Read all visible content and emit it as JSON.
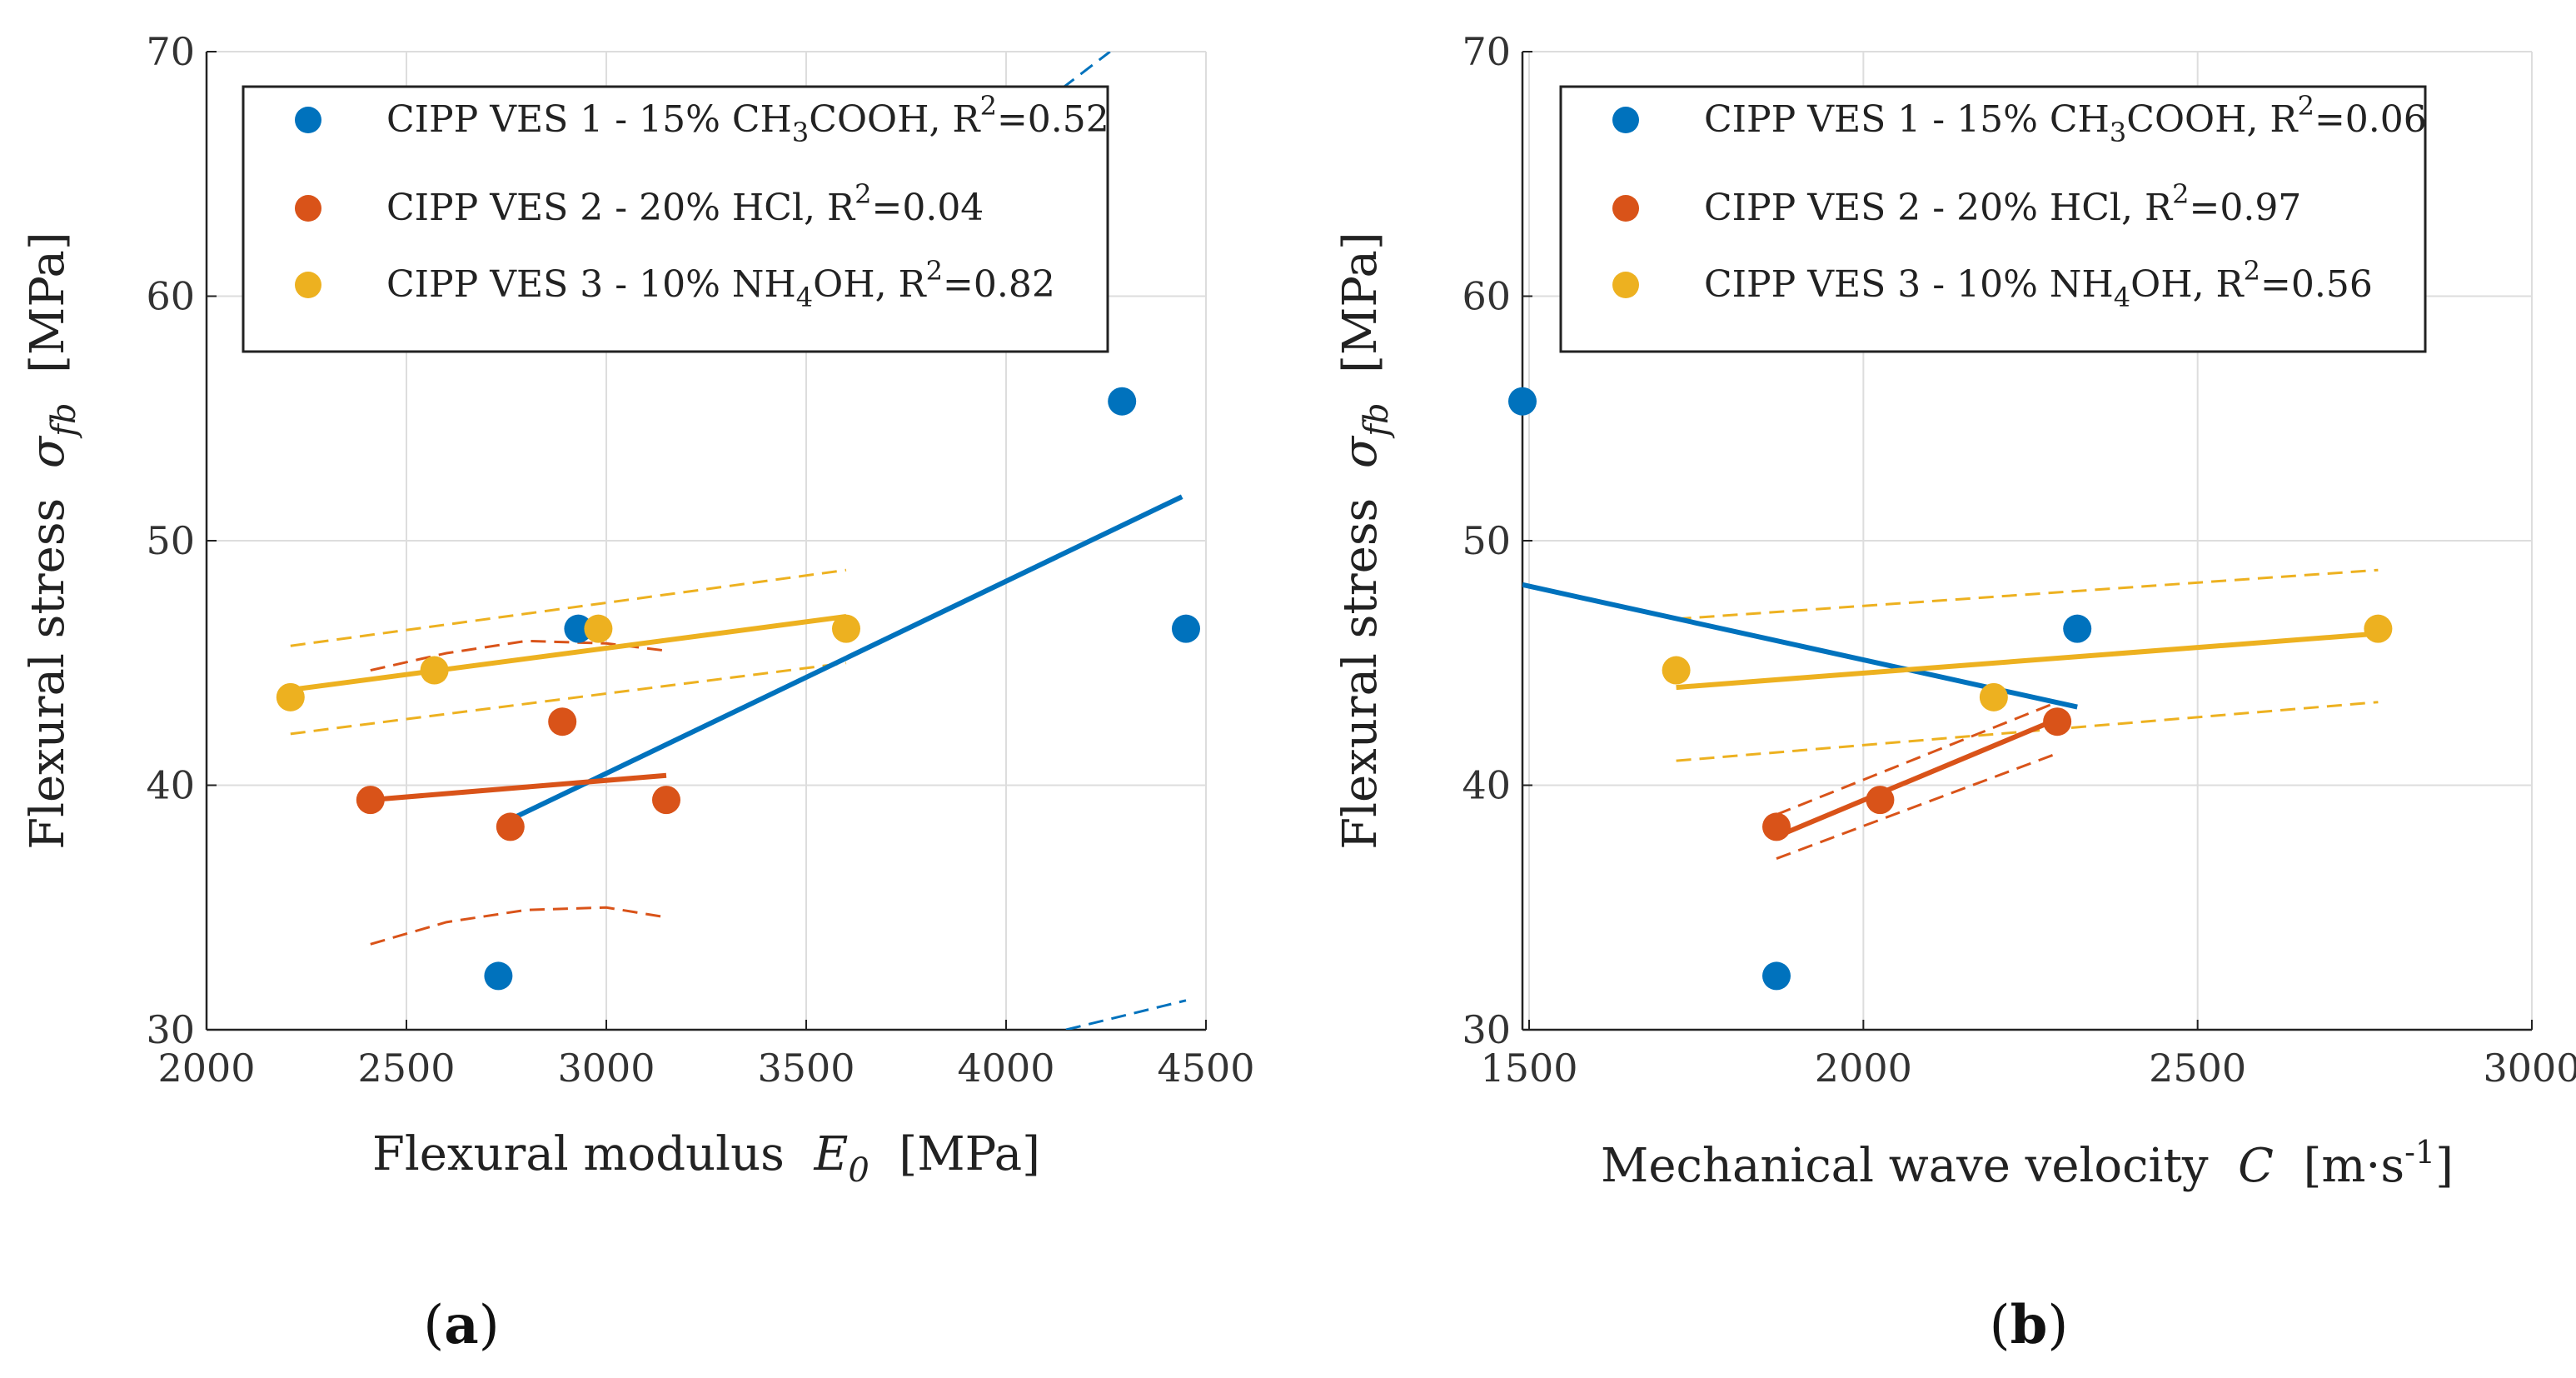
{
  "chart_data": [
    {
      "panel": "a",
      "panel_label": "(a)",
      "type": "scatter",
      "xlabel": "Flexural modulus",
      "xsymbol": "E",
      "xsymbol_sub": "0",
      "xunit": "[MPa]",
      "ylabel": "Flexural stress",
      "ysymbol": "σ",
      "ysymbol_sub": "fb",
      "yunit": "[MPa]",
      "xlim": [
        2000,
        4500
      ],
      "ylim": [
        30,
        70
      ],
      "xticks": [
        2000,
        2500,
        3000,
        3500,
        4000,
        4500
      ],
      "yticks": [
        30,
        40,
        50,
        60,
        70
      ],
      "grid": true,
      "legend_position": "top",
      "series": [
        {
          "name": "VES1",
          "color": "#0072BD",
          "legend_parts": [
            "CIPP VES 1 - 15% CH",
            "3",
            "COOH, R",
            "2",
            "=0.52"
          ],
          "x": [
            2930,
            4290,
            4450,
            2730
          ],
          "y": [
            46.4,
            55.7,
            46.4,
            32.2
          ],
          "fit": {
            "x": [
              2760,
              4440
            ],
            "y": [
              38.6,
              51.8
            ]
          },
          "ci_upper": {
            "x": [
              4140,
              4260
            ],
            "y": [
              68.5,
              70.0
            ]
          },
          "ci_lower": {
            "x": [
              4150,
              4450
            ],
            "y": [
              30.0,
              31.2
            ]
          }
        },
        {
          "name": "VES2",
          "color": "#D95319",
          "legend_parts": [
            "CIPP VES 2 - 20% HCl, R",
            "2",
            "=0.04"
          ],
          "x": [
            2410,
            2760,
            2890,
            3150
          ],
          "y": [
            39.4,
            38.3,
            42.6,
            39.4
          ],
          "fit": {
            "x": [
              2410,
              3150
            ],
            "y": [
              39.4,
              40.4
            ]
          },
          "ci_upper": {
            "x": [
              2410,
              2600,
              2800,
              3000,
              3150
            ],
            "y": [
              44.7,
              45.4,
              45.9,
              45.8,
              45.5
            ]
          },
          "ci_lower": {
            "x": [
              2410,
              2600,
              2800,
              3000,
              3150
            ],
            "y": [
              33.5,
              34.4,
              34.9,
              35.0,
              34.6
            ]
          }
        },
        {
          "name": "VES3",
          "color": "#EDB120",
          "legend_parts": [
            "CIPP VES 3 - 10% NH",
            "4",
            "OH, R",
            "2",
            "=0.82"
          ],
          "x": [
            2210,
            2570,
            2980,
            3600
          ],
          "y": [
            43.6,
            44.7,
            46.4,
            46.4
          ],
          "fit": {
            "x": [
              2210,
              3600
            ],
            "y": [
              43.9,
              46.9
            ]
          },
          "ci_upper": {
            "x": [
              2210,
              3600
            ],
            "y": [
              45.7,
              48.8
            ]
          },
          "ci_lower": {
            "x": [
              2210,
              3600
            ],
            "y": [
              42.1,
              45.0
            ]
          }
        }
      ]
    },
    {
      "panel": "b",
      "panel_label": "(b)",
      "type": "scatter",
      "xlabel": "Mechanical wave velocity",
      "xsymbol": "C",
      "xsymbol_sub": "",
      "xunit_parts": [
        "[m·s",
        "-1",
        "]"
      ],
      "ylabel": "Flexural stress",
      "ysymbol": "σ",
      "ysymbol_sub": "fb",
      "yunit": "[MPa]",
      "xlim": [
        1490,
        3000
      ],
      "ylim": [
        30,
        70
      ],
      "xticks": [
        1500,
        2000,
        2500,
        3000
      ],
      "yticks": [
        30,
        40,
        50,
        60,
        70
      ],
      "grid": true,
      "legend_position": "top",
      "series": [
        {
          "name": "VES1",
          "color": "#0072BD",
          "legend_parts": [
            "CIPP VES 1 - 15% CH",
            "3",
            "COOH, R",
            "2",
            "=0.06"
          ],
          "x": [
            1490,
            2320,
            1870
          ],
          "y": [
            55.7,
            46.4,
            32.2
          ],
          "fit": {
            "x": [
              1490,
              2320
            ],
            "y": [
              48.2,
              43.2
            ]
          }
        },
        {
          "name": "VES2",
          "color": "#D95319",
          "legend_parts": [
            "CIPP VES 2 - 20% HCl, R",
            "2",
            "=0.97"
          ],
          "x": [
            1870,
            2025,
            2290
          ],
          "y": [
            38.3,
            39.4,
            42.6
          ],
          "fit": {
            "x": [
              1870,
              2290
            ],
            "y": [
              37.9,
              42.7
            ]
          },
          "ci_upper": {
            "x": [
              1870,
              2290
            ],
            "y": [
              38.8,
              43.4
            ]
          },
          "ci_lower": {
            "x": [
              1870,
              2290
            ],
            "y": [
              37.0,
              41.3
            ]
          }
        },
        {
          "name": "VES3",
          "color": "#EDB120",
          "legend_parts": [
            "CIPP VES 3 - 10% NH",
            "4",
            "OH, R",
            "2",
            "=0.56"
          ],
          "x": [
            1720,
            2195,
            2770
          ],
          "y": [
            44.7,
            43.6,
            46.4
          ],
          "fit": {
            "x": [
              1720,
              2770
            ],
            "y": [
              44.0,
              46.2
            ]
          },
          "ci_upper": {
            "x": [
              1720,
              2770
            ],
            "y": [
              46.8,
              48.8
            ]
          },
          "ci_lower": {
            "x": [
              1720,
              2770
            ],
            "y": [
              41.0,
              43.4
            ]
          }
        }
      ]
    }
  ]
}
